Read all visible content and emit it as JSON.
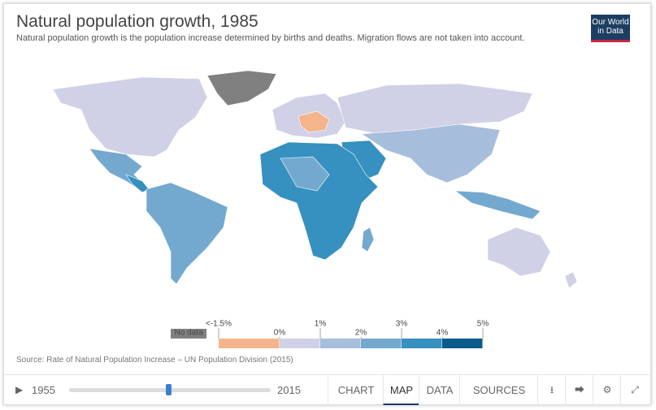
{
  "header": {
    "title": "Natural population growth, 1985",
    "subtitle": "Natural population growth is the population increase determined by births and deaths. Migration flows are not taken into account."
  },
  "logo": {
    "line1": "Our World",
    "line2": "in Data"
  },
  "legend": {
    "no_data": "No data",
    "no_data_color": "#808080",
    "ticks": [
      "<-1.5%",
      "0%",
      "1%",
      "2%",
      "3%",
      "4%",
      "5%"
    ],
    "colors": [
      "#f4b48c",
      "#d0d1e6",
      "#a6bddb",
      "#74a9cf",
      "#3690c0",
      "#0a5a8c"
    ]
  },
  "source": "Source: Rate of Natural Population Increase – UN Population Division (2015)",
  "timeline": {
    "start": "1955",
    "end": "2015"
  },
  "tabs": [
    "CHART",
    "MAP",
    "DATA",
    "SOURCES"
  ],
  "active_tab": "MAP"
}
